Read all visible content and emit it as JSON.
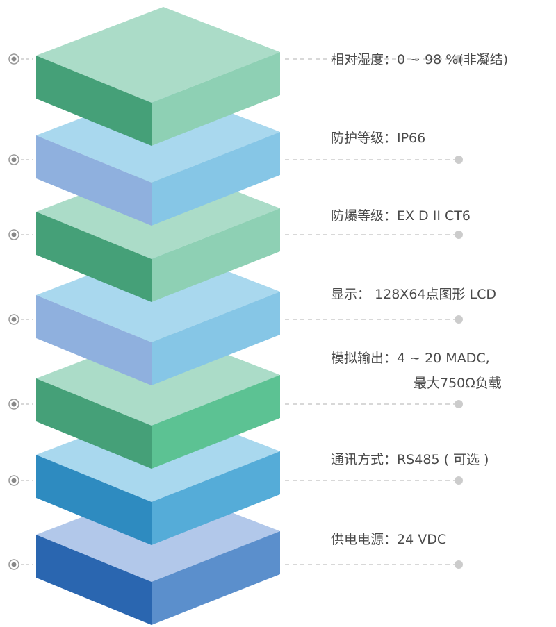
{
  "layers": [
    {
      "lines": [
        "相对湿度：0 ~ 98 %(非凝结)"
      ]
    },
    {
      "lines": [
        "防护等级：IP66"
      ]
    },
    {
      "lines": [
        "防爆等级：EX D II CT6"
      ]
    },
    {
      "lines": [
        "显示： 128X64点图形 LCD"
      ]
    },
    {
      "lines": [
        "模拟输出：4 ~ 20 MADC,",
        "最大750Ω负载"
      ]
    },
    {
      "lines": [
        "通讯方式：RS485 ( 可选 )"
      ]
    },
    {
      "lines": [
        "供电电源：24 VDC"
      ]
    }
  ]
}
